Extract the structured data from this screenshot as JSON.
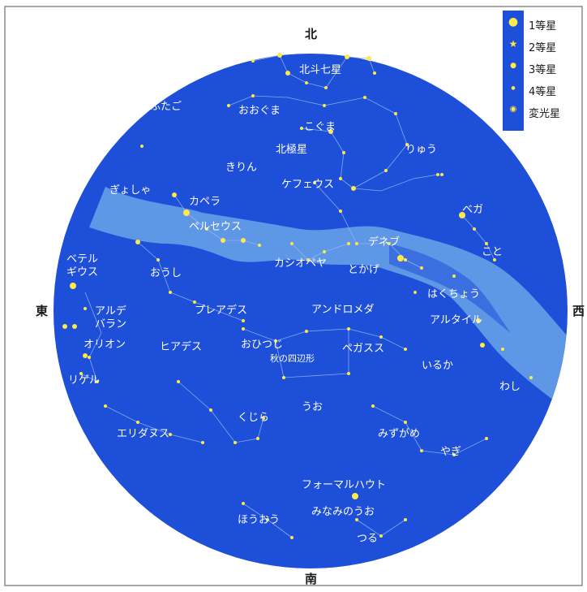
{
  "directions": {
    "north": "北",
    "south": "南",
    "east": "東",
    "west": "西"
  },
  "legend": [
    {
      "symbol": "star-mag1-icon",
      "label": "1等星"
    },
    {
      "symbol": "star-mag2-icon",
      "label": "2等星"
    },
    {
      "symbol": "star-mag3-icon",
      "label": "3等星"
    },
    {
      "symbol": "star-mag4-icon",
      "label": "4等星"
    },
    {
      "symbol": "variable-star-icon",
      "label": "変光星"
    }
  ],
  "constellations": {
    "hokuto": "北斗七星",
    "ookuma": "おおぐま",
    "futago": "ふたご",
    "koguma": "こぐま",
    "hokkyokusei": "北極星",
    "ryuu": "りゅう",
    "kirin": "きりん",
    "gyosha": "ぎょしゃ",
    "capella": "カペラ",
    "cepheus": "ケフェウス",
    "vega": "ベガ",
    "perseus": "ペルセウス",
    "deneb": "デネブ",
    "koto": "こと",
    "betelgeuse": "ベテル\nギウス",
    "oushi": "おうし",
    "cassiopeia": "カシオペヤ",
    "tokage": "とかげ",
    "hakuchou": "はくちょう",
    "aldebaran": "アルデ\nバラン",
    "pleiades": "プレアデス",
    "andromeda": "アンドロメダ",
    "altair": "アルタイル",
    "orion": "オリオン",
    "hyades": "ヒアデス",
    "ohitsuji": "おひつじ",
    "pegasus": "ペガスス",
    "aki_no_shihenkei": "秋の四辺形",
    "iruka": "いるか",
    "rigel": "リゲル",
    "washi": "わし",
    "uo": "うお",
    "kujira": "くじら",
    "mizugame": "みずがめ",
    "eridanus": "エリダヌス",
    "yagi": "やぎ",
    "fomalhaut": "フォーマルハウト",
    "minamino_uo": "みなみのうお",
    "houou": "ほうおう",
    "tsuru": "つる"
  },
  "colors": {
    "sky": "#1d4fd8",
    "milky_way": "#6ba3ea",
    "star": "#ffe94a",
    "line": "#9bb8f0",
    "label": "#ffffff",
    "frame": "#8a8a8a"
  }
}
